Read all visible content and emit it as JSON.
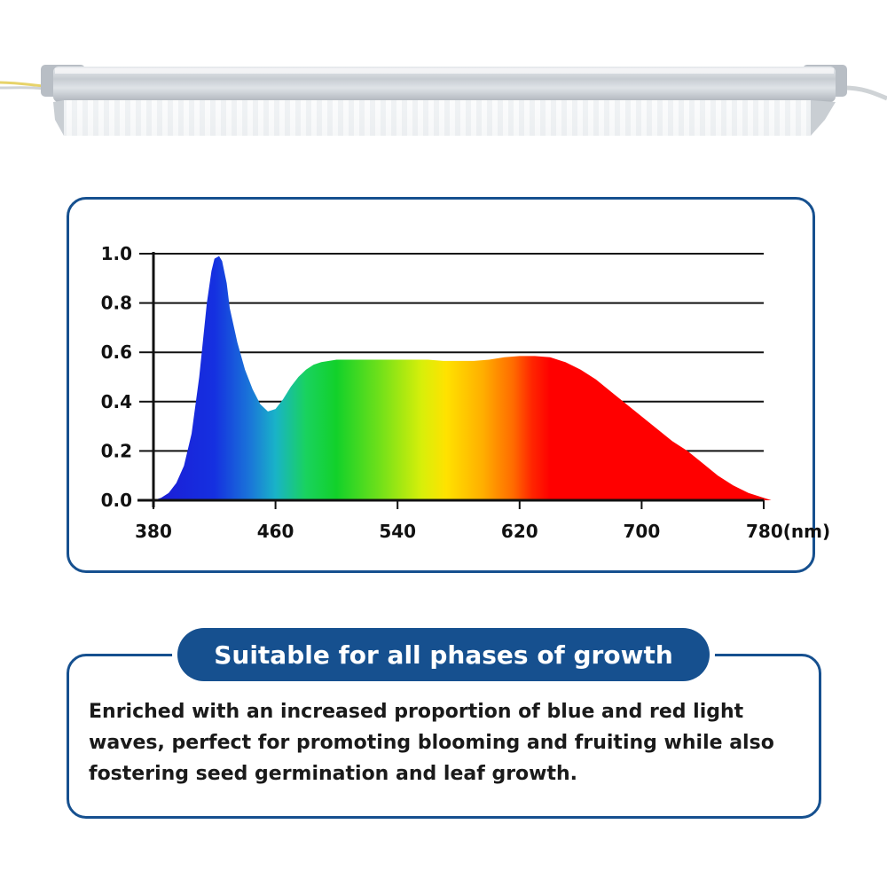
{
  "colors": {
    "accent": "#16508f",
    "gridline": "#111111",
    "axis": "#111111"
  },
  "chart_data": {
    "type": "area",
    "title": "",
    "xlabel": "",
    "ylabel": "",
    "x_unit_label": "(nm)",
    "xlim": [
      380,
      780
    ],
    "ylim": [
      0,
      1.0
    ],
    "x_ticks": [
      380,
      460,
      540,
      620,
      700,
      780
    ],
    "x_tick_labels": [
      "380",
      "460",
      "540",
      "620",
      "700",
      "780(nm)"
    ],
    "y_ticks": [
      0,
      0.2,
      0.4,
      0.6,
      0.8,
      1.0
    ],
    "y_tick_labels": [
      "0.0",
      "0.2",
      "0.4",
      "0.6",
      "0.8",
      "1.0"
    ],
    "grid": true,
    "fill": "visible-spectrum gradient",
    "series": [
      {
        "x": [
          380,
          385,
          390,
          395,
          400,
          405,
          410,
          415,
          418,
          420,
          423,
          425,
          428,
          430,
          435,
          440,
          445,
          450,
          455,
          460,
          465,
          470,
          475,
          480,
          485,
          490,
          495,
          500,
          510,
          520,
          530,
          540,
          550,
          560,
          570,
          580,
          590,
          600,
          610,
          620,
          630,
          640,
          650,
          660,
          670,
          680,
          690,
          700,
          710,
          720,
          730,
          740,
          750,
          760,
          770,
          780,
          785
        ],
        "y": [
          0.0,
          0.01,
          0.03,
          0.07,
          0.14,
          0.27,
          0.5,
          0.8,
          0.93,
          0.98,
          0.99,
          0.97,
          0.88,
          0.78,
          0.64,
          0.53,
          0.45,
          0.39,
          0.36,
          0.37,
          0.41,
          0.46,
          0.5,
          0.53,
          0.55,
          0.56,
          0.565,
          0.57,
          0.57,
          0.57,
          0.57,
          0.57,
          0.57,
          0.57,
          0.565,
          0.565,
          0.565,
          0.57,
          0.58,
          0.585,
          0.585,
          0.58,
          0.56,
          0.53,
          0.49,
          0.44,
          0.39,
          0.34,
          0.29,
          0.24,
          0.2,
          0.15,
          0.1,
          0.06,
          0.03,
          0.01,
          0.0
        ]
      }
    ]
  },
  "info": {
    "pill_title": "Suitable for all phases of growth",
    "body_text": "Enriched with an increased proportion of blue and red light waves, perfect for promoting blooming and fruiting while also fostering seed germination and leaf growth."
  }
}
